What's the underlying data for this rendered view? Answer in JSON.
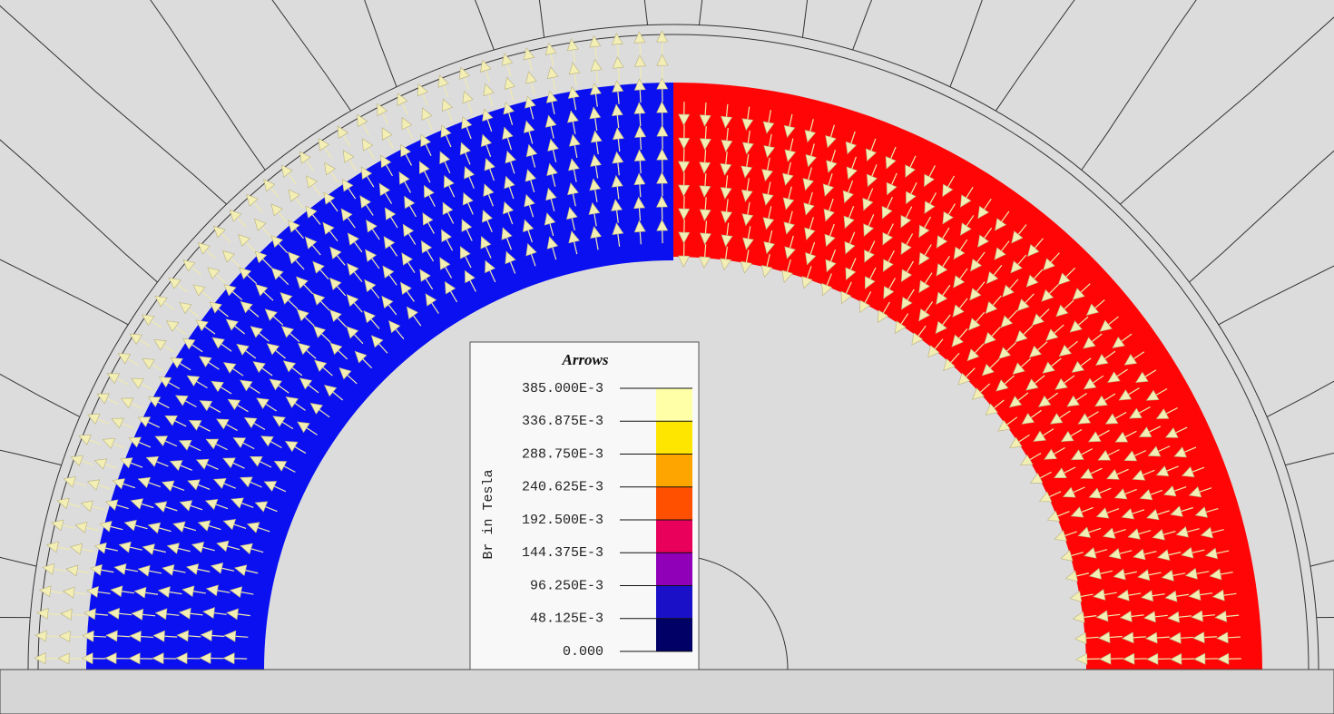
{
  "legend": {
    "title": "Arrows",
    "quantity_label": "Br in Tesla",
    "levels": [
      "385.000E-3",
      "336.875E-3",
      "288.750E-3",
      "240.625E-3",
      "192.500E-3",
      "144.375E-3",
      "96.250E-3",
      "48.125E-3",
      "0.000"
    ],
    "colors": [
      "#ffffa8",
      "#ffe600",
      "#ffa500",
      "#ff5000",
      "#e8005a",
      "#9000b8",
      "#1a10c8",
      "#000066"
    ]
  }
}
